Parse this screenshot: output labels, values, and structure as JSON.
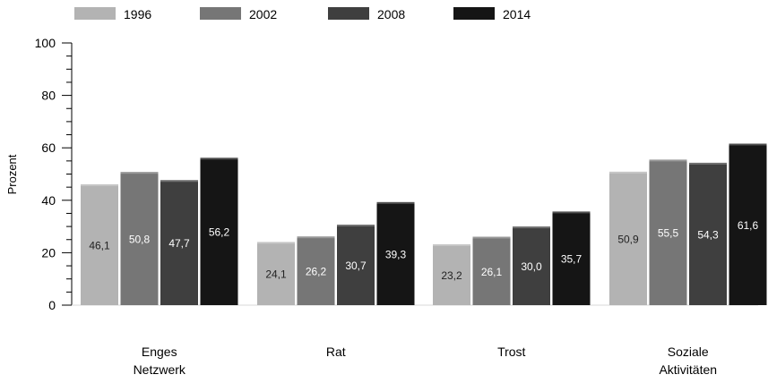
{
  "chart_data": {
    "type": "bar",
    "title": "",
    "xlabel": "",
    "ylabel": "Prozent",
    "ylim": [
      0,
      100
    ],
    "yticks": [
      "0",
      "20",
      "40",
      "60",
      "80",
      "100"
    ],
    "grid": false,
    "legend_position": "top-left",
    "categories": [
      [
        "Enges",
        "Netzwerk"
      ],
      [
        "Rat"
      ],
      [
        "Trost"
      ],
      [
        "Soziale",
        "Aktivitäten"
      ]
    ],
    "series": [
      {
        "name": "1996",
        "color": "#b3b3b3",
        "values": [
          46.1,
          24.1,
          23.2,
          50.9
        ],
        "labels": [
          "46,1",
          "24,1",
          "23,2",
          "50,9"
        ]
      },
      {
        "name": "2002",
        "color": "#767676",
        "values": [
          50.8,
          26.2,
          26.1,
          55.5
        ],
        "labels": [
          "50,8",
          "26,2",
          "26,1",
          "55,5"
        ]
      },
      {
        "name": "2008",
        "color": "#3f3f3f",
        "values": [
          47.7,
          30.7,
          30.0,
          54.3
        ],
        "labels": [
          "47,7",
          "30,7",
          "30,0",
          "54,3"
        ]
      },
      {
        "name": "2014",
        "color": "#151515",
        "values": [
          56.2,
          39.3,
          35.7,
          61.6
        ],
        "labels": [
          "56,2",
          "39,3",
          "35,7",
          "61,6"
        ]
      }
    ]
  }
}
